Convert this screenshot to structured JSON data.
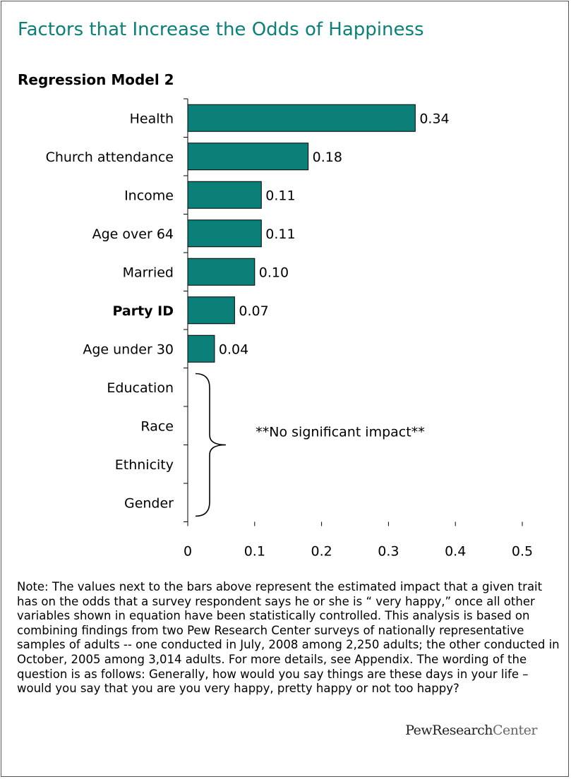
{
  "chart_data": {
    "type": "bar",
    "orientation": "horizontal",
    "title": "Factors that Increase the Odds of Happiness",
    "subtitle": "Regression Model 2",
    "categories": [
      "Health",
      "Church attendance",
      "Income",
      "Age over 64",
      "Married",
      "Party ID",
      "Age under 30",
      "Education",
      "Race",
      "Ethnicity",
      "Gender"
    ],
    "bold_categories": [
      "Party ID"
    ],
    "values": [
      0.34,
      0.18,
      0.11,
      0.11,
      0.1,
      0.07,
      0.04,
      null,
      null,
      null,
      null
    ],
    "data_labels": [
      "0.34",
      "0.18",
      "0.11",
      "0.11",
      "0.10",
      "0.07",
      "0.04",
      "",
      "",
      "",
      ""
    ],
    "xlim": [
      0,
      0.5
    ],
    "xticks": [
      "0",
      "0.1",
      "0.2",
      "0.3",
      "0.4",
      "0.5"
    ],
    "xlabel": "",
    "ylabel": "",
    "bar_color": "#0b8078",
    "annotation": "**No significant impact**"
  },
  "note": "Note: The values next to the bars above represent the estimated impact that a given trait has on the odds that a survey respondent says he or she is “ very happy,” once all other variables shown in equation have been statistically controlled. This analysis is based on combining findings from two Pew Research Center surveys of nationally representative samples of adults -- one conducted in July, 2008 among 2,250 adults; the other conducted in October,  2005 among 3,014 adults. For more details, see Appendix. The wording of the question is as follows: Generally, how would you say things are these days in your life – would you say that you are you very happy, pretty happy or not too happy?",
  "logo": {
    "part1": "PewResearch",
    "part2": "Center"
  },
  "colors": {
    "title": "#0b8078",
    "bar": "#0b8078"
  }
}
